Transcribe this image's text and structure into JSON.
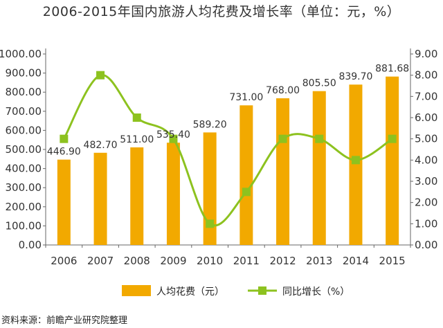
{
  "chart_data": {
    "type": "bar",
    "title": "2006-2015年国内旅游人均花费及增长率（单位：元，%）",
    "categories": [
      "2006",
      "2007",
      "2008",
      "2009",
      "2010",
      "2011",
      "2012",
      "2013",
      "2014",
      "2015"
    ],
    "series": [
      {
        "name": "人均花费（元）",
        "type": "bar",
        "axis": "left",
        "color": "#F2A900",
        "values": [
          446.9,
          482.7,
          511.0,
          535.4,
          589.2,
          731.0,
          768.0,
          805.5,
          839.7,
          881.68
        ],
        "labels": [
          "446.90",
          "482.70",
          "511.00",
          "535.40",
          "589.20",
          "731.00",
          "768.00",
          "805.50",
          "839.70",
          "881.68"
        ]
      },
      {
        "name": "同比增长（%）",
        "type": "line",
        "axis": "right",
        "color": "#8DC21F",
        "marker": "square",
        "smooth": true,
        "values": [
          5.0,
          8.0,
          6.0,
          5.0,
          1.0,
          2.5,
          5.0,
          5.0,
          4.0,
          5.0
        ]
      }
    ],
    "y_left": {
      "ylim": [
        0,
        1000
      ],
      "ticks": [
        "0.00",
        "100.00",
        "200.00",
        "300.00",
        "400.00",
        "500.00",
        "600.00",
        "700.00",
        "800.00",
        "900.00",
        "1000.00"
      ]
    },
    "y_right": {
      "ylim": [
        0,
        9
      ],
      "ticks": [
        "0.00",
        "1.00",
        "2.00",
        "3.00",
        "4.00",
        "5.00",
        "6.00",
        "7.00",
        "8.00",
        "9.00"
      ]
    },
    "grid": false,
    "legend": "bottom-center"
  },
  "source_note": "资料来源：前瞻产业研究院整理"
}
